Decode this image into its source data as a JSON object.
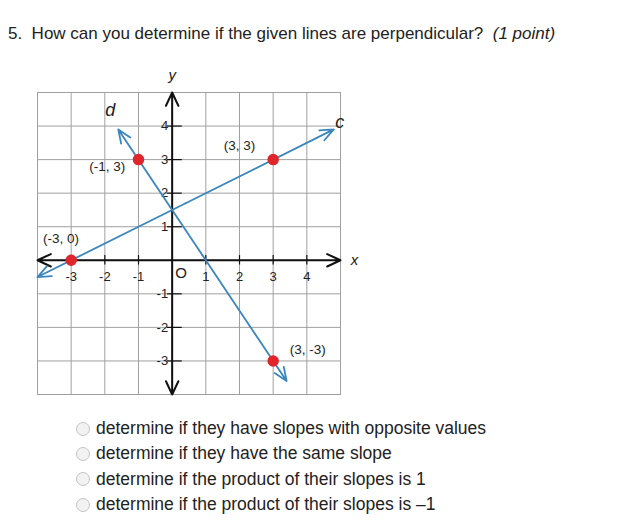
{
  "question": {
    "number": "5.",
    "text": "How can you determine if the given lines are perpendicular?",
    "points": "(1 point)"
  },
  "chart_data": {
    "type": "line",
    "xlim": [
      -4,
      5
    ],
    "ylim": [
      -4,
      5
    ],
    "xticks": [
      -3,
      -2,
      -1,
      1,
      2,
      3,
      4
    ],
    "yticks": [
      -3,
      -2,
      -1,
      1,
      2,
      3,
      4
    ],
    "grid": true,
    "x_label": "x",
    "y_label": "y",
    "origin_label": "O",
    "series": [
      {
        "name": "c",
        "type": "line",
        "color": "#3a86bf",
        "x": [
          -4,
          4.8
        ],
        "values": [
          -0.5,
          3.9
        ]
      },
      {
        "name": "d",
        "type": "line",
        "color": "#3a86bf",
        "x": [
          -1.6,
          3.4
        ],
        "values": [
          3.9,
          -3.6
        ]
      },
      {
        "type": "scatter",
        "color": "#e0262b",
        "marker": "circle",
        "x": [
          3,
          -1,
          -3,
          3
        ],
        "values": [
          3,
          3,
          0,
          -3
        ]
      }
    ],
    "annotations": [
      {
        "text": "(3, 3)",
        "x": 2.0,
        "y": 3.42
      },
      {
        "text": "(-1, 3)",
        "x": -1.93,
        "y": 2.8
      },
      {
        "text": "(-3, 0)",
        "x": -3.3,
        "y": 0.65
      },
      {
        "text": "(3, -3)",
        "x": 4.03,
        "y": -2.65
      }
    ]
  },
  "options": [
    "determine if they have slopes with opposite values",
    "determine if they have the same slope",
    "determine if the product of their slopes is 1",
    "determine if the product of their slopes is –1"
  ]
}
